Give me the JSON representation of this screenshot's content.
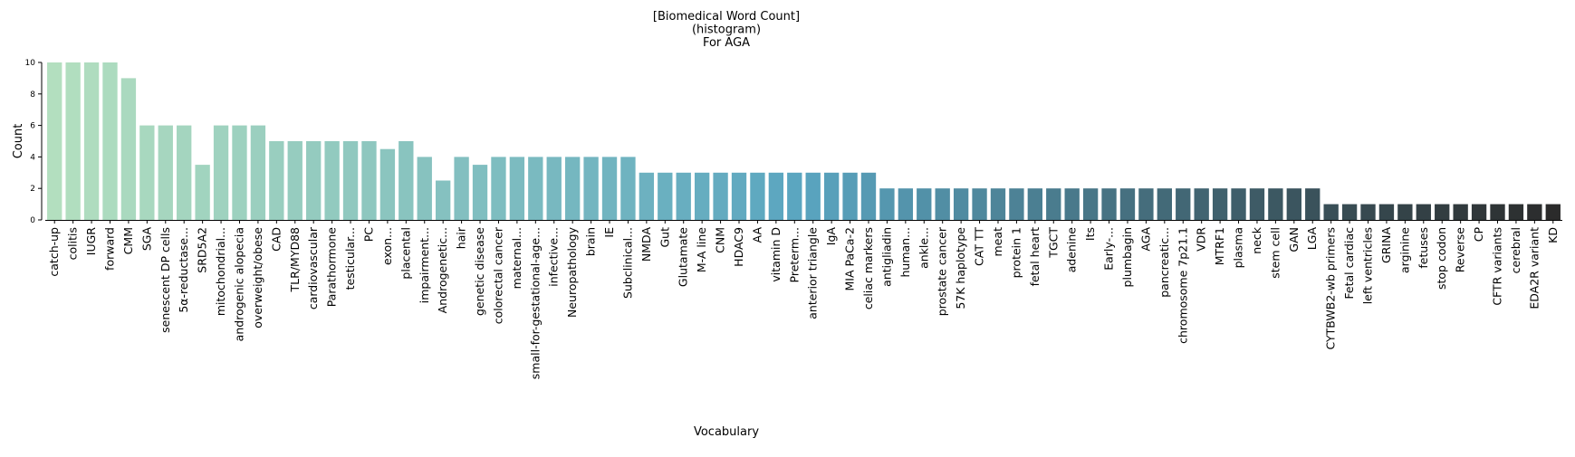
{
  "chart_data": {
    "type": "bar",
    "title": [
      "[Biomedical Word Count]",
      "(histogram)",
      "For AGA"
    ],
    "xlabel": "Vocabulary",
    "ylabel": "Count",
    "ylim": [
      0,
      10
    ],
    "yticks": [
      0,
      2,
      4,
      6,
      8,
      10
    ],
    "grid": false,
    "legend": "none",
    "color_start": "#b3dfbf",
    "color_mid": "#5aa5c0",
    "color_end": "#2b2b2b",
    "categories": [
      "catch-up",
      "colitis",
      "IUGR",
      "forward",
      "CMM",
      "SGA",
      "senescent DP cells",
      "5α-reductase...",
      "SRD5A2",
      "mitochondrial...",
      "androgenic alopecia",
      "overweight/obese",
      "CAD",
      "TLR/MYD88",
      "cardiovascular",
      "Parathormone",
      "testicular...",
      "PC",
      "exon...",
      "placental",
      "impairment...",
      "Androgenetic...",
      "hair",
      "genetic disease",
      "colorectal cancer",
      "maternal...",
      "small-for-gestational-age...",
      "infective...",
      "Neuropathology",
      "brain",
      "IE",
      "Subclinical...",
      "NMDA",
      "Gut",
      "Glutamate",
      "M-A line",
      "CNM",
      "HDAC9",
      "AA",
      "vitamin D",
      "Preterm...",
      "anterior triangle",
      "IgA",
      "MIA PaCa-2",
      "celiac markers",
      "antigliadin",
      "human...",
      "ankle...",
      "prostate cancer",
      "57K haplotype",
      "CAT TT",
      "meat",
      "protein 1",
      "fetal heart",
      "TGCT",
      "adenine",
      "Its",
      "Early-...",
      "plumbagin",
      "AGA",
      "pancreatic...",
      "chromosome 7p21.1",
      "VDR",
      "MTRF1",
      "plasma",
      "neck",
      "stem cell",
      "GAN",
      "LGA",
      "CYTBWB2-wb primers",
      "Fetal cardiac",
      "left ventricles",
      "GRINA",
      "arginine",
      "fetuses",
      "stop codon",
      "Reverse",
      "CP",
      "CFTR variants",
      "cerebral",
      "EDA2R variant",
      "KD"
    ],
    "values": [
      10,
      10,
      10,
      10,
      9,
      6,
      6,
      6,
      3.5,
      6,
      6,
      6,
      5,
      5,
      5,
      5,
      5,
      5,
      4.5,
      5,
      4,
      2.5,
      4,
      3.5,
      4,
      4,
      4,
      4,
      4,
      4,
      4,
      4,
      3,
      3,
      3,
      3,
      3,
      3,
      3,
      3,
      3,
      3,
      3,
      3,
      3,
      2,
      2,
      2,
      2,
      2,
      2,
      2,
      2,
      2,
      2,
      2,
      2,
      2,
      2,
      2,
      2,
      2,
      2,
      2,
      2,
      2,
      2,
      2,
      2,
      1,
      1,
      1,
      1,
      1,
      1,
      1,
      1,
      1,
      1,
      1,
      1,
      1
    ]
  }
}
